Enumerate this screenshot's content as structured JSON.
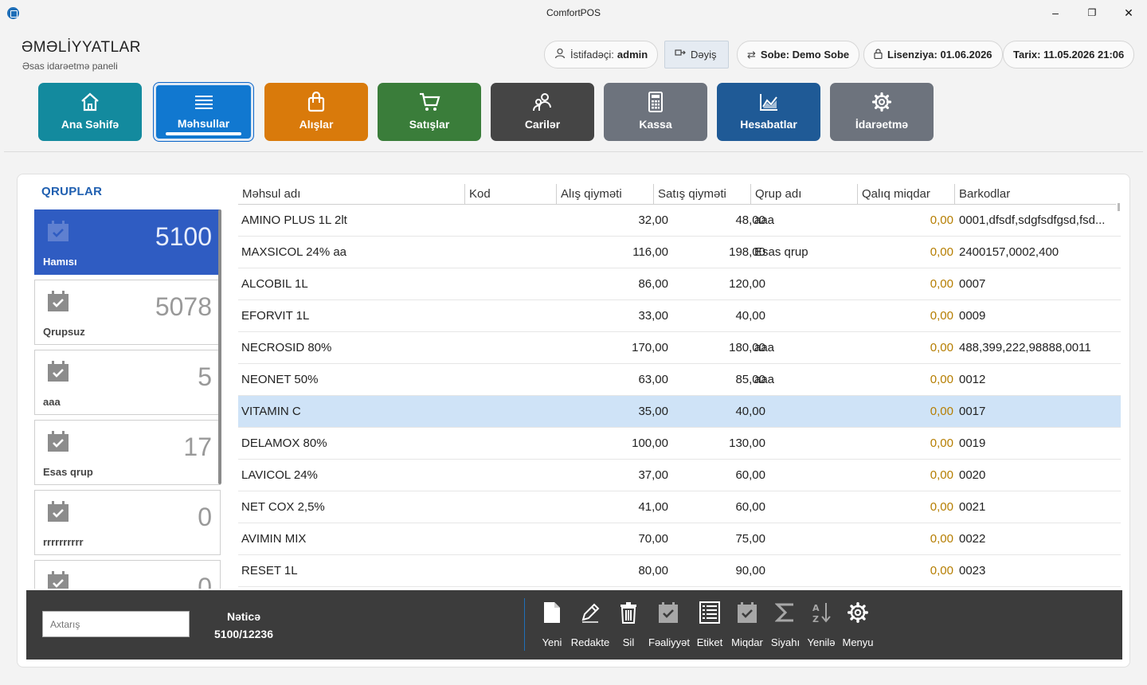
{
  "window": {
    "title": "ComfortPOS",
    "minimize": "–",
    "maximize": "❐",
    "close": "✕"
  },
  "header": {
    "title": "ƏMƏLİYYATLAR",
    "subtitle": "Əsas idarəetmə paneli",
    "user_label": "İstifadəçi:",
    "user_value": "admin",
    "change_label": "Dəyiş",
    "branch_label": "Sobe: Demo Sobe",
    "license_label": "Lisenziya: 01.06.2026",
    "date_label": "Tarix: 11.05.2026 21:06"
  },
  "nav": [
    {
      "label": "Ana Səhifə",
      "icon": "home-icon",
      "color": "#138a9e"
    },
    {
      "label": "Məhsullar",
      "icon": "list-icon",
      "color": "#1178d0",
      "active": true
    },
    {
      "label": "Alışlar",
      "icon": "bag-icon",
      "color": "#d97a0b"
    },
    {
      "label": "Satışlar",
      "icon": "cart-icon",
      "color": "#3a7d3a"
    },
    {
      "label": "Carilər",
      "icon": "people-icon",
      "color": "#454545"
    },
    {
      "label": "Kassa",
      "icon": "calculator-icon",
      "color": "#6d737d"
    },
    {
      "label": "Hesabatlar",
      "icon": "chart-icon",
      "color": "#1f5a96"
    },
    {
      "label": "İdarəetmə",
      "icon": "gear-icon",
      "color": "#6d737d"
    }
  ],
  "groups": {
    "title": "QRUPLAR",
    "items": [
      {
        "name": "Hamısı",
        "count": "5100",
        "active": true
      },
      {
        "name": "Qrupsuz",
        "count": "5078"
      },
      {
        "name": "aaa",
        "count": "5"
      },
      {
        "name": "Esas qrup",
        "count": "17"
      },
      {
        "name": "rrrrrrrrrr",
        "count": "0"
      },
      {
        "name": "",
        "count": "0"
      }
    ]
  },
  "table": {
    "columns": [
      "Məhsul adı",
      "Kod",
      "Alış qiyməti",
      "Satış qiyməti",
      "Qrup adı",
      "Qalıq miqdar",
      "Barkodlar"
    ],
    "rows": [
      [
        "AMINO PLUS 1L 2lt",
        "",
        "32,00",
        "48,00",
        "aaa",
        "0,00",
        "0001,dfsdf,sdgfsdfgsd,fsd..."
      ],
      [
        "MAXSICOL 24% aa",
        "",
        "116,00",
        "198,00",
        "Esas qrup",
        "0,00",
        "2400157,0002,400"
      ],
      [
        "ALCOBIL 1L",
        "",
        "86,00",
        "120,00",
        "",
        "0,00",
        "0007"
      ],
      [
        "EFORVIT 1L",
        "",
        "33,00",
        "40,00",
        "",
        "0,00",
        "0009"
      ],
      [
        "NECROSID 80%",
        "",
        "170,00",
        "180,00",
        "aaa",
        "0,00",
        "488,399,222,98888,0011"
      ],
      [
        "NEONET 50%",
        "",
        "63,00",
        "85,00",
        "aaa",
        "0,00",
        "0012"
      ],
      [
        "VITAMIN C",
        "",
        "35,00",
        "40,00",
        "",
        "0,00",
        "0017"
      ],
      [
        "DELAMOX 80%",
        "",
        "100,00",
        "130,00",
        "",
        "0,00",
        "0019"
      ],
      [
        "LAVICOL 24%",
        "",
        "37,00",
        "60,00",
        "",
        "0,00",
        "0020"
      ],
      [
        "NET COX 2,5%",
        "",
        "41,00",
        "60,00",
        "",
        "0,00",
        "0021"
      ],
      [
        "AVIMIN MIX",
        "",
        "70,00",
        "75,00",
        "",
        "0,00",
        "0022"
      ],
      [
        "RESET 1L",
        "",
        "80,00",
        "90,00",
        "",
        "0,00",
        "0023"
      ]
    ],
    "selected_row": 6
  },
  "footer": {
    "search_placeholder": "Axtarış",
    "result_label": "Nəticə",
    "result_value": "5100/12236",
    "tools": [
      {
        "label": "Yeni",
        "icon": "new-document-icon"
      },
      {
        "label": "Redakte",
        "icon": "pencil-icon"
      },
      {
        "label": "Sil",
        "icon": "trash-icon"
      },
      {
        "label": "Fəaliyyət",
        "icon": "calendar-check-icon",
        "dim": true
      },
      {
        "label": "Etiket",
        "icon": "label-icon"
      },
      {
        "label": "Miqdar",
        "icon": "calendar-check-icon",
        "dim": true
      },
      {
        "label": "Siyahı",
        "icon": "sigma-icon",
        "dim": true
      },
      {
        "label": "Yenilə",
        "icon": "sort-az-icon",
        "dim": true
      },
      {
        "label": "Menyu",
        "icon": "gear-icon"
      }
    ]
  }
}
